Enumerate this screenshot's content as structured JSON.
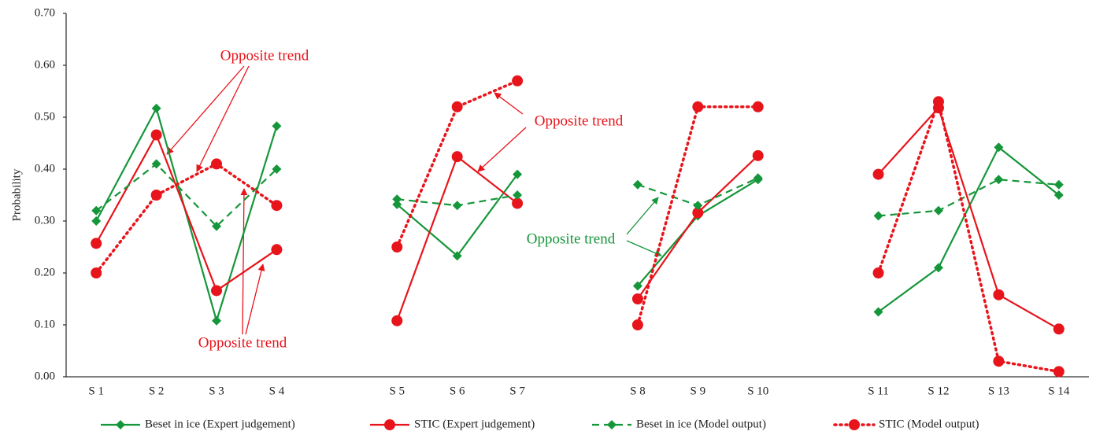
{
  "chart_data": {
    "type": "line",
    "ylabel": "Probability",
    "categories": [
      "S 1",
      "S 2",
      "S 3",
      "S 4",
      null,
      "S 5",
      "S 6",
      "S 7",
      null,
      "S 8",
      "S 9",
      "S 10",
      null,
      "S 11",
      "S 12",
      "S 13",
      "S 14"
    ],
    "ylim": [
      0,
      0.7
    ],
    "yticks": [
      {
        "value": 0,
        "label": "0.00"
      },
      {
        "value": 0.1,
        "label": "0.10"
      },
      {
        "value": 0.2,
        "label": "0.20"
      },
      {
        "value": 0.3,
        "label": "0.30"
      },
      {
        "value": 0.4,
        "label": "0.40"
      },
      {
        "value": 0.5,
        "label": "0.50"
      },
      {
        "value": 0.6,
        "label": "0.60"
      },
      {
        "value": 0.7,
        "label": "0.70"
      }
    ],
    "series": [
      {
        "name": "Beset in ice (Expert judgement)",
        "color": "#16963a",
        "dash": "solid",
        "marker": "diamond",
        "values": [
          0.3,
          0.517,
          0.108,
          0.483,
          null,
          0.332,
          0.233,
          0.39,
          null,
          0.175,
          0.31,
          0.38,
          null,
          0.125,
          0.21,
          0.442,
          0.35
        ]
      },
      {
        "name": "STIC (Expert judgement)",
        "color": "#e8141b",
        "dash": "solid",
        "marker": "circle",
        "values": [
          0.257,
          0.466,
          0.166,
          0.245,
          null,
          0.108,
          0.424,
          0.334,
          null,
          0.15,
          0.316,
          0.426,
          null,
          0.39,
          0.518,
          0.158,
          0.092
        ]
      },
      {
        "name": "Beset in ice (Model output)",
        "color": "#16963a",
        "dash": "dashed",
        "marker": "diamond",
        "values": [
          0.32,
          0.41,
          0.29,
          0.4,
          null,
          0.342,
          0.33,
          0.35,
          null,
          0.37,
          0.33,
          0.383,
          null,
          0.31,
          0.32,
          0.38,
          0.37
        ]
      },
      {
        "name": "STIC (Model output)",
        "color": "#e8141b",
        "dash": "dotted",
        "marker": "circle",
        "values": [
          0.2,
          0.35,
          0.41,
          0.33,
          null,
          0.25,
          0.52,
          0.57,
          null,
          0.1,
          0.52,
          0.52,
          null,
          0.2,
          0.53,
          0.03,
          0.01
        ]
      }
    ],
    "annotations": [
      {
        "text": "Opposite trend",
        "color": "#e8141b"
      },
      {
        "text": "Opposite trend",
        "color": "#e8141b"
      },
      {
        "text": "Opposite trend",
        "color": "#e8141b"
      },
      {
        "text": "Opposite trend",
        "color": "#16963a"
      }
    ]
  }
}
